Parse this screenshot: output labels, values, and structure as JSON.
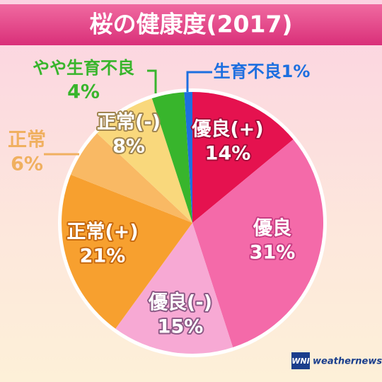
{
  "chart_data": {
    "type": "pie",
    "title": "桜の健康度(2017)",
    "categories": [
      "優良(+)",
      "優良",
      "優良(-)",
      "正常(+)",
      "正常",
      "正常(-)",
      "やや生育不良",
      "生育不良"
    ],
    "values": [
      14,
      31,
      15,
      21,
      6,
      8,
      4,
      1
    ],
    "value_labels": [
      "14%",
      "31%",
      "15%",
      "21%",
      "6%",
      "8%",
      "4%",
      "1%"
    ],
    "colors": [
      "#e5124f",
      "#f46aa9",
      "#f7a9d4",
      "#f7a02f",
      "#f9b964",
      "#f9d87c",
      "#38b52c",
      "#1d6fe0"
    ]
  },
  "logo": {
    "mark": "WNI",
    "name": "weathernews"
  }
}
